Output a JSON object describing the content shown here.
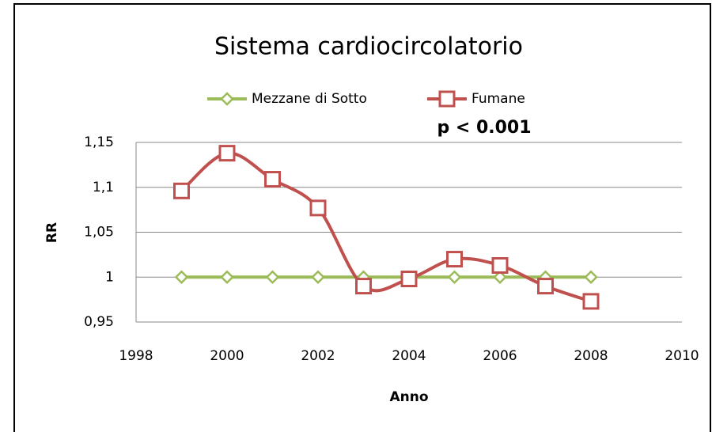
{
  "chart_data": {
    "type": "line",
    "title": "Sistema cardiocircolatorio",
    "annotation": "p < 0.001",
    "x_label": "Anno",
    "y_label": "RR",
    "x": [
      1999,
      2000,
      2001,
      2002,
      2003,
      2004,
      2005,
      2006,
      2007,
      2008
    ],
    "series": [
      {
        "name": "Mezzane di Sotto",
        "color": "#9bbb59",
        "marker": "diamond",
        "values": [
          1,
          1,
          1,
          1,
          1,
          1,
          1,
          1,
          1,
          1
        ]
      },
      {
        "name": "Fumane",
        "color": "#c0504d",
        "marker": "square",
        "values": [
          1.096,
          1.138,
          1.109,
          1.077,
          0.99,
          0.998,
          1.02,
          1.013,
          0.99,
          0.973
        ]
      }
    ],
    "xlim": [
      1998,
      2010
    ],
    "xticks": [
      1998,
      2000,
      2002,
      2004,
      2006,
      2008,
      2010
    ],
    "ylim": [
      0.95,
      1.15
    ],
    "yticks": [
      {
        "value": 0.95,
        "label": "0,95"
      },
      1,
      {
        "value": 1.05,
        "label": "1,05"
      },
      {
        "value": 1.1,
        "label": "1,1"
      },
      {
        "value": 1.15,
        "label": "1,15"
      }
    ],
    "grid": true,
    "smooth": true,
    "legend": "top"
  }
}
